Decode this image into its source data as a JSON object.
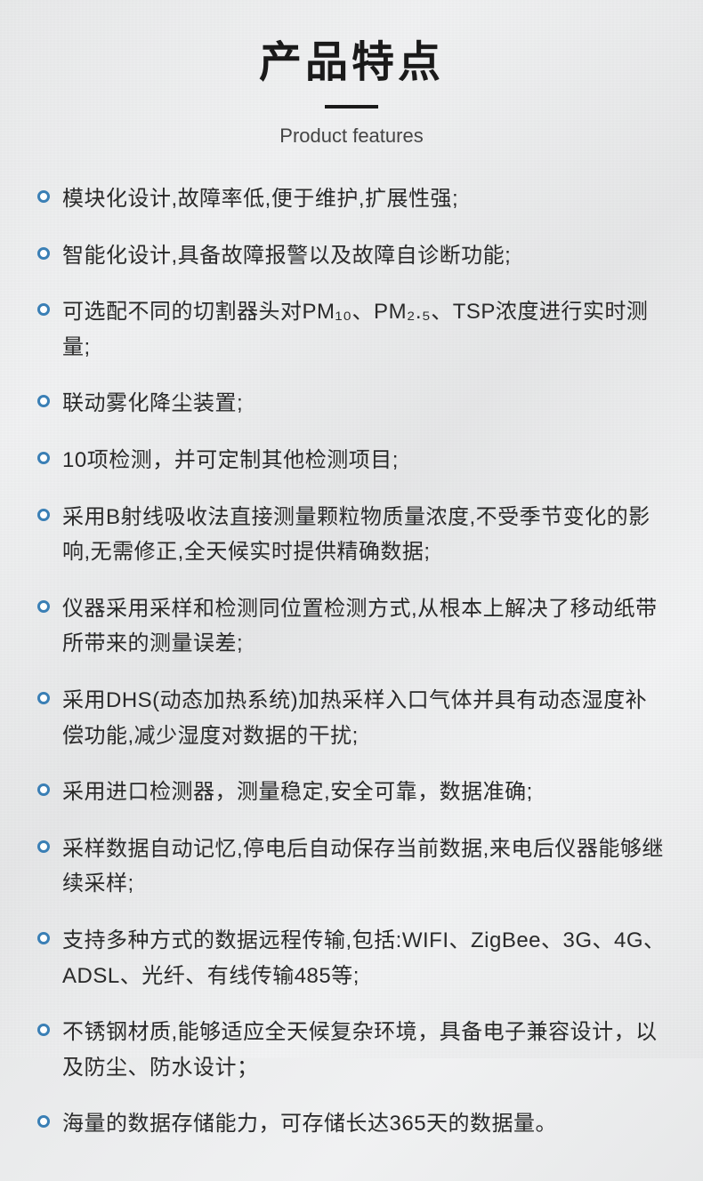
{
  "title_cn": "产品特点",
  "title_en": "Product features",
  "bullet_color": "#3a7fb5",
  "text_color": "#2a2a2a",
  "items": [
    "模块化设计,故障率低,便于维护,扩展性强;",
    "智能化设计,具备故障报警以及故障自诊断功能;",
    "可选配不同的切割器头对PM₁₀、PM₂.₅、TSP浓度进行实时测量;",
    "联动雾化降尘装置;",
    "10项检测，并可定制其他检测项目;",
    "采用B射线吸收法直接测量颗粒物质量浓度,不受季节变化的影响,无需修正,全天候实时提供精确数据;",
    "仪器采用采样和检测同位置检测方式,从根本上解决了移动纸带所带来的测量误差;",
    "采用DHS(动态加热系统)加热采样入口气体并具有动态湿度补偿功能,减少湿度对数据的干扰;",
    "采用进口检测器，测量稳定,安全可靠，数据准确;",
    "采样数据自动记忆,停电后自动保存当前数据,来电后仪器能够继续采样;",
    "支持多种方式的数据远程传输,包括:WIFI、ZigBee、3G、4G、ADSL、光纤、有线传输485等;",
    "不锈钢材质,能够适应全天候复杂环境，具备电子兼容设计，以及防尘、防水设计；",
    "海量的数据存储能力，可存储长达365天的数据量。"
  ]
}
